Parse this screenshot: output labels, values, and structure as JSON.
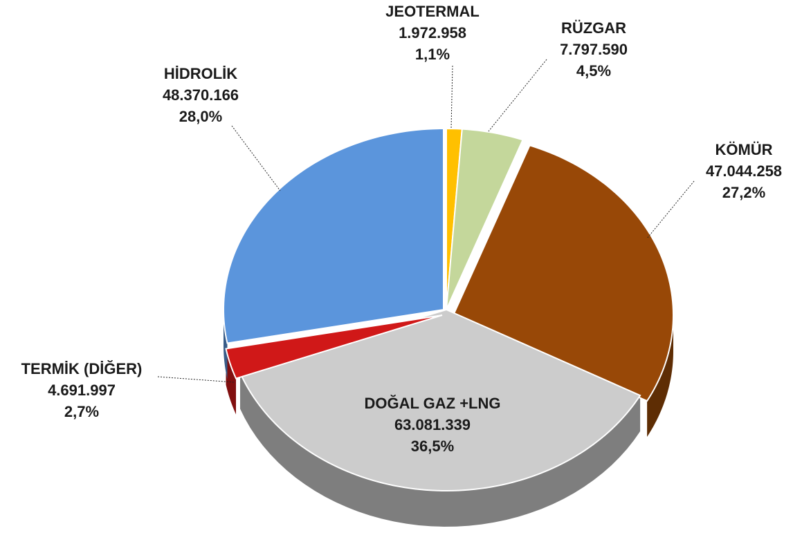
{
  "chart_data": {
    "type": "pie3d",
    "categories": [
      "JEOTERMAL",
      "RÜZGAR",
      "KÖMÜR",
      "DOĞAL GAZ +LNG",
      "TERMİK (DİĞER)",
      "HİDROLİK"
    ],
    "values": [
      1972958,
      7797590,
      47044258,
      63081339,
      4691997,
      48370166
    ],
    "value_labels": [
      "1.972.958",
      "7.797.590",
      "47.044.258",
      "63.081.339",
      "4.691.997",
      "48.370.166"
    ],
    "percents": [
      1.1,
      4.5,
      27.2,
      36.5,
      2.7,
      28.0
    ],
    "percent_labels": [
      "1,1%",
      "4,5%",
      "27,2%",
      "36,5%",
      "2,7%",
      "28,0%"
    ],
    "colors": [
      "#ffc000",
      "#c4d79b",
      "#984807",
      "#cccccc",
      "#d01818",
      "#5b95dc"
    ]
  }
}
